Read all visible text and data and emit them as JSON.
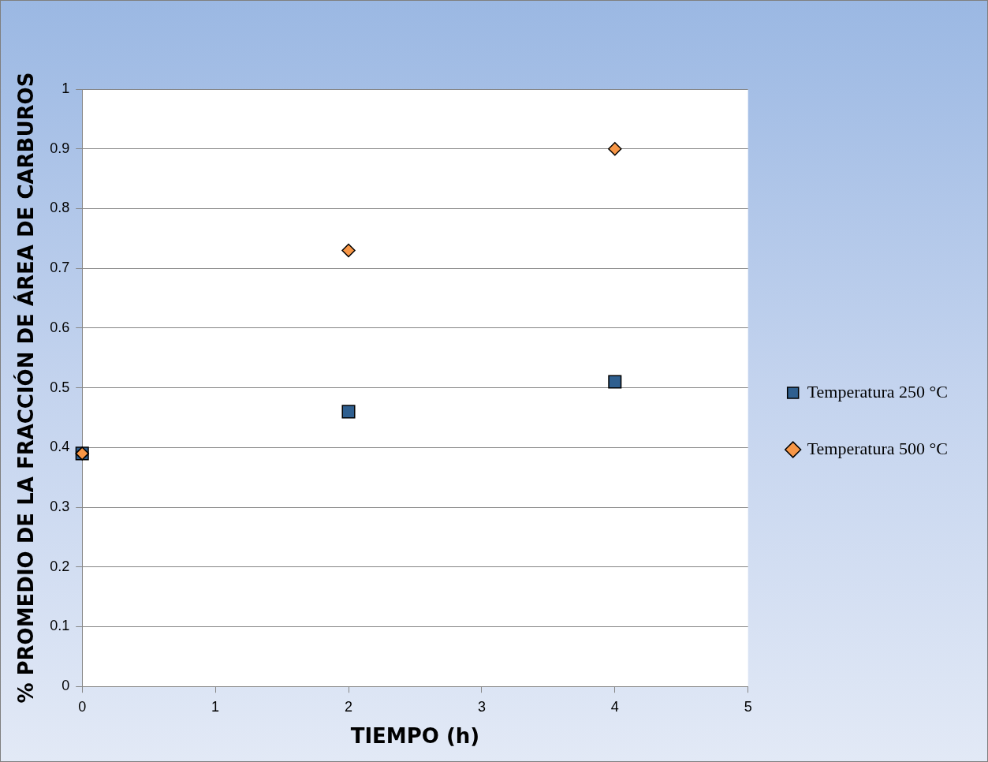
{
  "chart_data": {
    "type": "scatter",
    "xlabel": "TIEMPO (h)",
    "ylabel": "% PROMEDIO DE LA FRACCIÓN DE ÁREA DE CARBUROS",
    "x": [
      0,
      2,
      4
    ],
    "series": [
      {
        "name": "Temperatura 250 °C",
        "color": "#2f5f8f",
        "marker": "square",
        "values": [
          0.39,
          0.46,
          0.51
        ]
      },
      {
        "name": "Temperatura 500 °C",
        "color": "#f79646",
        "marker": "diamond",
        "values": [
          0.39,
          0.73,
          0.9
        ]
      }
    ],
    "xlim": [
      0,
      5
    ],
    "xticks": [
      0,
      1,
      2,
      3,
      4,
      5
    ],
    "ylim": [
      0,
      1
    ],
    "yticks": [
      0,
      0.1,
      0.2,
      0.3,
      0.4,
      0.5,
      0.6,
      0.7,
      0.8,
      0.9,
      {
        "value": 1,
        "label": "1"
      }
    ],
    "grid": "y",
    "legend": "right"
  }
}
